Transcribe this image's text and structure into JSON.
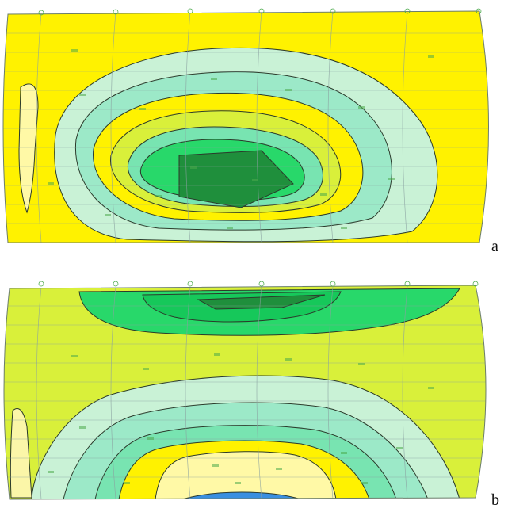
{
  "panels": [
    {
      "id": "a",
      "label": "a"
    },
    {
      "id": "b",
      "label": "b"
    }
  ],
  "colors": {
    "yellow": "#FFF200",
    "light_yellow": "#FFF9A6",
    "pale_yellow": "#FBF6A8",
    "yellow_green": "#D9F03A",
    "light_aqua": "#C9F2D6",
    "aqua": "#9CE9C8",
    "mint": "#78E4B1",
    "bright_green": "#28D86A",
    "green": "#16C85A",
    "dark_green": "#1F8F3C",
    "blue": "#3A8FE0",
    "contour_line": "#2b3a2b",
    "mesh_line": "#8aa0a0",
    "node_label": "#4caa4c"
  }
}
